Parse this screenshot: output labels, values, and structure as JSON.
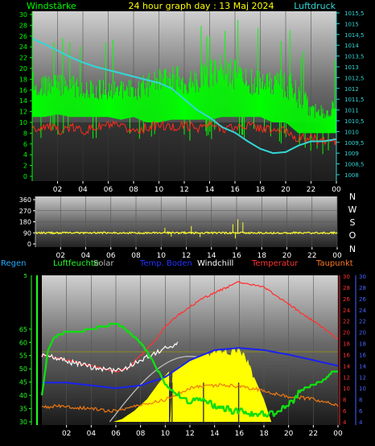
{
  "header": {
    "title": "24 hour graph day : 13 Maj 2024",
    "left_label": "Windstärke",
    "right_label": "Luftdruck"
  },
  "legend": {
    "regen": "Regen",
    "luftfeuchte": "Luftfeuchte",
    "solar": "Solar",
    "temp_boden": "Temp. Boden",
    "windchill": "Windchill",
    "temperatur": "Temperatur",
    "taupunkt": "Taupunkt"
  },
  "compass": [
    "N",
    "W",
    "S",
    "O",
    "N"
  ],
  "colors": {
    "wind": "#00ff00",
    "gust": "#ff2a1a",
    "pressure": "#33d6d6",
    "direction": "#ffff33",
    "humidity": "#11dd11",
    "solar": "#ffff00",
    "soil_temp": "#1a22ee",
    "windchill": "#ffffff",
    "temperature": "#ff3333",
    "dewpoint": "#ee7711",
    "left_axis_2": "#22ff22",
    "right_axis_red": "#ff3333",
    "right_axis_blue": "#4466ff"
  },
  "chart_data": [
    {
      "type": "line",
      "id": "wind_pressure",
      "x_ticks": [
        "02",
        "04",
        "06",
        "08",
        "10",
        "12",
        "14",
        "16",
        "18",
        "20",
        "22",
        "00"
      ],
      "y_left": {
        "range": [
          0,
          30
        ],
        "ticks": [
          "0",
          "2",
          "4",
          "6",
          "8",
          "10",
          "12",
          "14",
          "16",
          "18",
          "20",
          "22",
          "24",
          "26",
          "28",
          "30"
        ]
      },
      "y_right": {
        "range": [
          1008,
          1015.5
        ],
        "ticks": [
          "1008",
          "1008,5",
          "1009",
          "1009,5",
          "1010",
          "1010,5",
          "1011",
          "1011,5",
          "1012",
          "1012,5",
          "1013",
          "1013,5",
          "1014",
          "1014,5",
          "1015",
          "1015,5"
        ]
      },
      "series": [
        {
          "key": "wind",
          "axis": "left",
          "band": true,
          "x": [
            0,
            1,
            2,
            3,
            4,
            5,
            6,
            7,
            8,
            9,
            10,
            11,
            12,
            13,
            14,
            15,
            16,
            17,
            18,
            19,
            20,
            21,
            22,
            23,
            24
          ],
          "low": [
            11,
            11,
            11.5,
            11,
            11,
            11,
            11,
            10.5,
            11,
            10,
            10,
            10.5,
            10.5,
            10.5,
            10.5,
            11,
            11,
            11,
            11,
            10,
            10,
            8,
            8,
            8,
            8
          ],
          "high": [
            20,
            19,
            19,
            19,
            18,
            18,
            18,
            18,
            18,
            19,
            20,
            21,
            20,
            21,
            22,
            23,
            22,
            20,
            20,
            20,
            20,
            18,
            14,
            14,
            15
          ]
        },
        {
          "key": "gust",
          "axis": "left",
          "x": [
            0,
            1,
            2,
            3,
            4,
            5,
            6,
            7,
            8,
            9,
            10,
            11,
            12,
            13,
            14,
            15,
            16,
            17,
            18,
            19,
            20,
            21,
            22,
            23,
            24
          ],
          "values": [
            8.5,
            9.5,
            8.5,
            9,
            8.5,
            9,
            9.5,
            9,
            8.5,
            9,
            9.5,
            9,
            9.5,
            9,
            9.5,
            9,
            9,
            9.5,
            9,
            8.5,
            8.5,
            7,
            7,
            6.5,
            6.5
          ]
        },
        {
          "key": "pressure",
          "axis": "right",
          "x": [
            0,
            1,
            2,
            3,
            4,
            5,
            6,
            7,
            8,
            9,
            10,
            11,
            12,
            13,
            14,
            15,
            16,
            17,
            18,
            19,
            20,
            21,
            22,
            23,
            24
          ],
          "values": [
            1014.3,
            1014.05,
            1013.75,
            1013.45,
            1013.2,
            1013.0,
            1012.85,
            1012.7,
            1012.55,
            1012.4,
            1012.25,
            1012.0,
            1011.5,
            1011.0,
            1010.65,
            1010.2,
            1009.95,
            1009.55,
            1009.2,
            1009.0,
            1009.05,
            1009.35,
            1009.55,
            1009.55,
            1009.65
          ]
        }
      ]
    },
    {
      "type": "scatter",
      "id": "wind_direction",
      "x_ticks": [
        "02",
        "04",
        "06",
        "08",
        "10",
        "12",
        "14",
        "16",
        "18",
        "20",
        "22",
        "00"
      ],
      "y": {
        "range": [
          0,
          360
        ],
        "ticks": [
          "0",
          "90",
          "180",
          "270",
          "360"
        ]
      },
      "series": [
        {
          "key": "direction",
          "base": 90,
          "spikes": [
            [
              10.3,
              130
            ],
            [
              12.4,
              145
            ],
            [
              15.7,
              160
            ],
            [
              16.1,
              200
            ],
            [
              16.5,
              175
            ],
            [
              15.9,
              45
            ],
            [
              13.1,
              55
            ],
            [
              10.8,
              60
            ]
          ]
        }
      ]
    },
    {
      "type": "line",
      "id": "climate",
      "x_ticks": [
        "02",
        "04",
        "06",
        "08",
        "10",
        "12",
        "14",
        "16",
        "18",
        "20",
        "22",
        "00"
      ],
      "y_left_1": {
        "range": [
          30,
          85
        ],
        "ticks": [
          "5",
          "30",
          "35",
          "40",
          "45",
          "50",
          "55",
          "60",
          "65"
        ]
      },
      "y_left_2": {
        "range": [
          0,
          1
        ],
        "ticks": []
      },
      "y_right_red": {
        "range": [
          4,
          30
        ],
        "ticks": [
          "4",
          "6",
          "8",
          "10",
          "12",
          "14",
          "16",
          "18",
          "20",
          "22",
          "24",
          "26",
          "28",
          "30"
        ]
      },
      "y_right_blue": {
        "range": [
          4,
          30
        ],
        "ticks": [
          "4",
          "6",
          "8",
          "10",
          "12",
          "14",
          "16",
          "18",
          "20",
          "22",
          "24",
          "26",
          "28",
          "30"
        ]
      },
      "series": [
        {
          "key": "solar",
          "area": true,
          "x": [
            0,
            5.8,
            6.5,
            7.5,
            8.5,
            9.5,
            10.3,
            10.4,
            10.6,
            11.2,
            12,
            13,
            14,
            14.8,
            15.2,
            15.8,
            16.2,
            16.6,
            17.2,
            18,
            18.6,
            24
          ],
          "values": [
            4,
            4,
            4.5,
            6,
            8,
            11,
            13,
            4,
            13,
            14,
            15,
            16,
            16.4,
            16.6,
            16.5,
            17,
            16.3,
            15,
            12,
            8,
            4,
            4
          ]
        },
        {
          "key": "humidity",
          "axis": "left_1",
          "x": [
            0,
            0.5,
            1,
            2,
            3,
            4,
            5,
            6,
            6.5,
            7,
            8,
            9,
            10,
            11,
            12,
            13,
            14,
            15,
            15.5,
            16,
            16.5,
            17,
            18,
            19,
            20,
            21,
            22,
            23,
            23.5,
            24
          ],
          "values": [
            40,
            57,
            62,
            64,
            64,
            65,
            66,
            67,
            66,
            64,
            60,
            53,
            44,
            40,
            38,
            38,
            36,
            35,
            34,
            34,
            33,
            33,
            33,
            33,
            36,
            42,
            44,
            46,
            49,
            49
          ]
        },
        {
          "key": "soil_temp",
          "axis": "right_blue",
          "x": [
            0,
            2,
            4,
            6,
            8,
            10,
            12,
            14,
            16,
            18,
            20,
            22,
            24
          ],
          "values": [
            11,
            11,
            10.5,
            10,
            10.5,
            12,
            15,
            16.8,
            17.2,
            16.8,
            16,
            15,
            14
          ]
        },
        {
          "key": "windchill",
          "axis": "right_red",
          "x": [
            0,
            2,
            4,
            6,
            7,
            8,
            9,
            10,
            11
          ],
          "values": [
            16,
            14.8,
            13.8,
            13,
            13.8,
            15,
            16,
            17.2,
            18
          ]
        },
        {
          "key": "temperature",
          "axis": "right_red",
          "x": [
            0,
            1,
            2,
            3,
            4,
            5,
            6,
            7,
            8,
            9,
            10,
            11,
            12,
            13,
            14,
            15,
            16,
            17,
            18,
            19,
            20,
            21,
            22,
            23,
            24
          ],
          "values": [
            16,
            15.5,
            15,
            14.5,
            14,
            13.5,
            13,
            13.6,
            15.8,
            18,
            21,
            23,
            24.5,
            26,
            27,
            28,
            29,
            28.5,
            28,
            26.5,
            25,
            23.5,
            22,
            20.5,
            18.8
          ]
        },
        {
          "key": "dewpoint",
          "axis": "right_red",
          "x": [
            0,
            1,
            2,
            3,
            4,
            5,
            6,
            7,
            8,
            9,
            10,
            11,
            12,
            13,
            14,
            15,
            16,
            17,
            18,
            19,
            20,
            21,
            22,
            23,
            24
          ],
          "values": [
            6.5,
            6.8,
            6.7,
            6.5,
            6.4,
            6,
            6,
            6.5,
            7,
            7.5,
            8,
            9,
            10,
            10.5,
            10.5,
            10.5,
            10.3,
            10,
            9.5,
            9,
            8.5,
            8.3,
            8,
            7.5,
            7
          ]
        }
      ]
    }
  ]
}
